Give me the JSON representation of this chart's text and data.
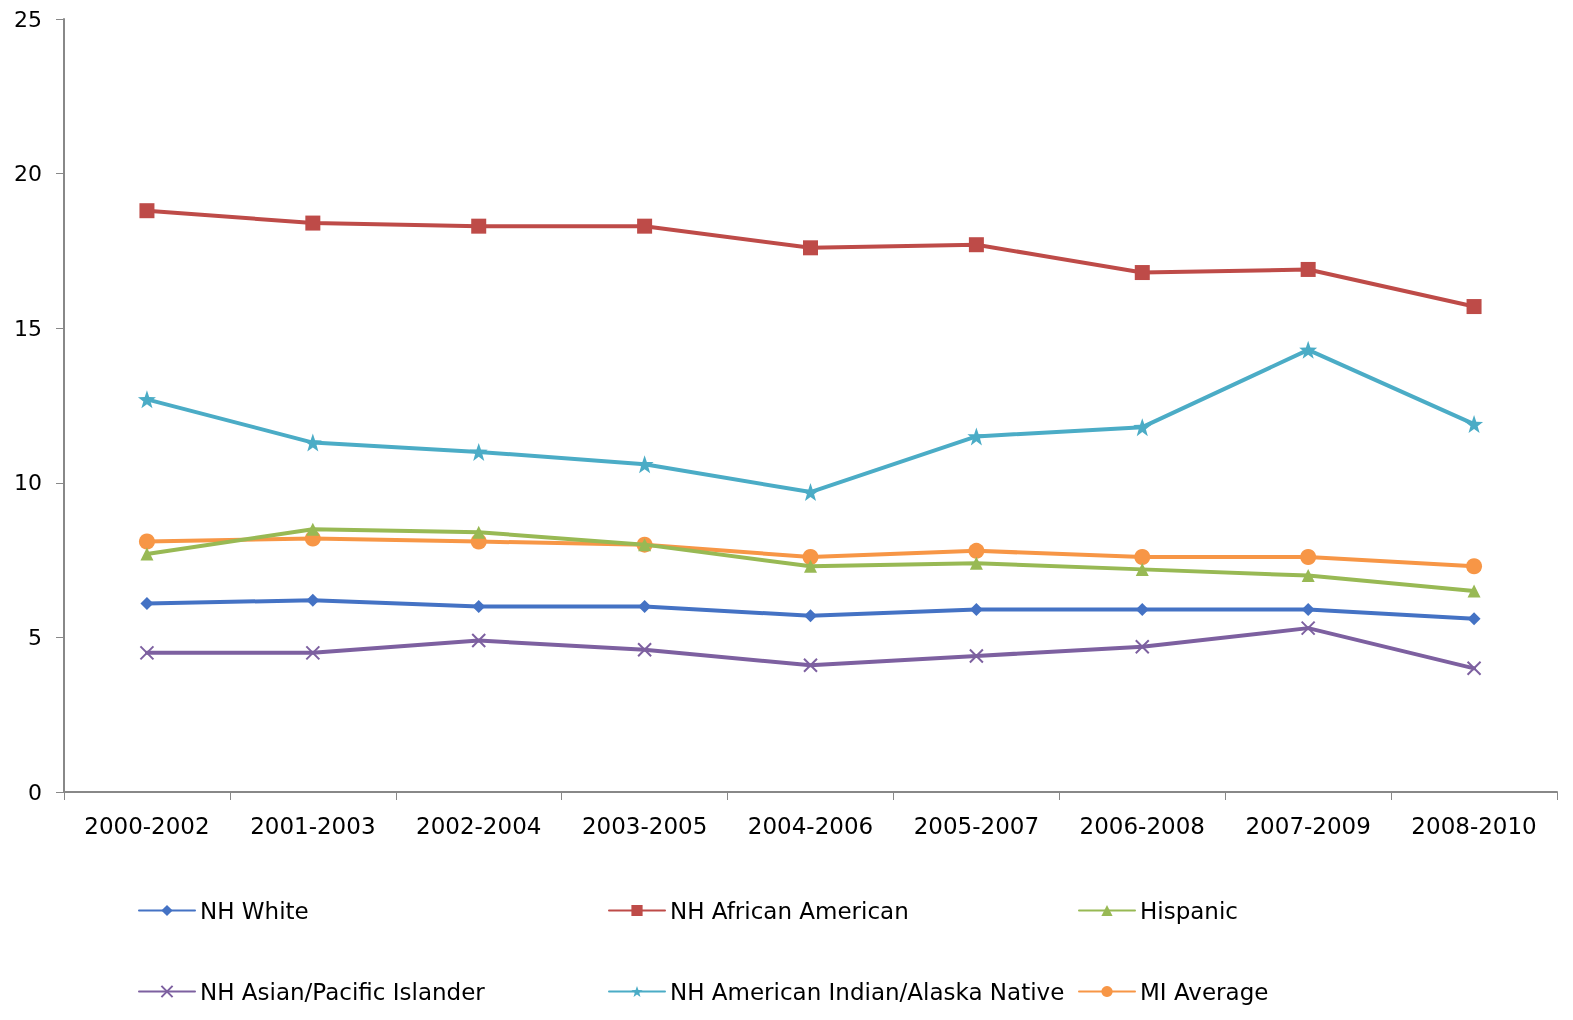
{
  "chart_data": {
    "type": "line",
    "categories": [
      "2000-2002",
      "2001-2003",
      "2002-2004",
      "2003-2005",
      "2004-2006",
      "2005-2007",
      "2006-2008",
      "2007-2009",
      "2008-2010"
    ],
    "series": [
      {
        "name": "NH White",
        "color": "#4472c4",
        "marker": "diamond",
        "values": [
          6.1,
          6.2,
          6.0,
          6.0,
          5.7,
          5.9,
          5.9,
          5.9,
          5.6
        ]
      },
      {
        "name": "NH African American",
        "color": "#be4b48",
        "marker": "square",
        "values": [
          18.8,
          18.4,
          18.3,
          18.3,
          17.6,
          17.7,
          16.8,
          16.9,
          15.7
        ]
      },
      {
        "name": "Hispanic",
        "color": "#98b954",
        "marker": "triangle",
        "values": [
          7.7,
          8.5,
          8.4,
          8.0,
          7.3,
          7.4,
          7.2,
          7.0,
          6.5
        ]
      },
      {
        "name": "NH Asian/Pacific Islander",
        "color": "#7d60a0",
        "marker": "cross",
        "values": [
          4.5,
          4.5,
          4.9,
          4.6,
          4.1,
          4.4,
          4.7,
          5.3,
          4.0
        ]
      },
      {
        "name": "NH American Indian/Alaska Native",
        "color": "#4bacc6",
        "marker": "star",
        "values": [
          12.7,
          11.3,
          11.0,
          10.6,
          9.7,
          11.5,
          11.8,
          14.3,
          11.9
        ]
      },
      {
        "name": "MI Average",
        "color": "#f79646",
        "marker": "circle",
        "values": [
          8.1,
          8.2,
          8.1,
          8.0,
          7.6,
          7.8,
          7.6,
          7.6,
          7.3
        ]
      }
    ],
    "ylim": [
      0,
      25
    ],
    "yticks": [
      0,
      5,
      10,
      15,
      20,
      25
    ],
    "grid": false,
    "legend": "bottom",
    "line_style": "solid"
  }
}
